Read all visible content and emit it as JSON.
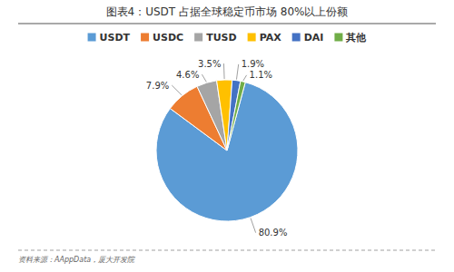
{
  "chart_data": {
    "type": "pie",
    "title": "图表4：USDT 占据全球稳定币市场 80%以上份额",
    "categories": [
      "USDT",
      "USDC",
      "TUSD",
      "PAX",
      "DAI",
      "其他"
    ],
    "values": [
      80.9,
      7.9,
      4.6,
      3.5,
      1.9,
      1.1
    ],
    "value_labels": [
      "80.9%",
      "7.9%",
      "4.6%",
      "3.5%",
      "1.9%",
      "1.1%"
    ],
    "colors": [
      "#5B9BD5",
      "#ED7D31",
      "#A5A5A5",
      "#FFC000",
      "#4472C4",
      "#70AD47"
    ],
    "data_labels": true,
    "legend": "top",
    "annotations": [
      "资料来源：AAppData，厦大开发院"
    ]
  }
}
